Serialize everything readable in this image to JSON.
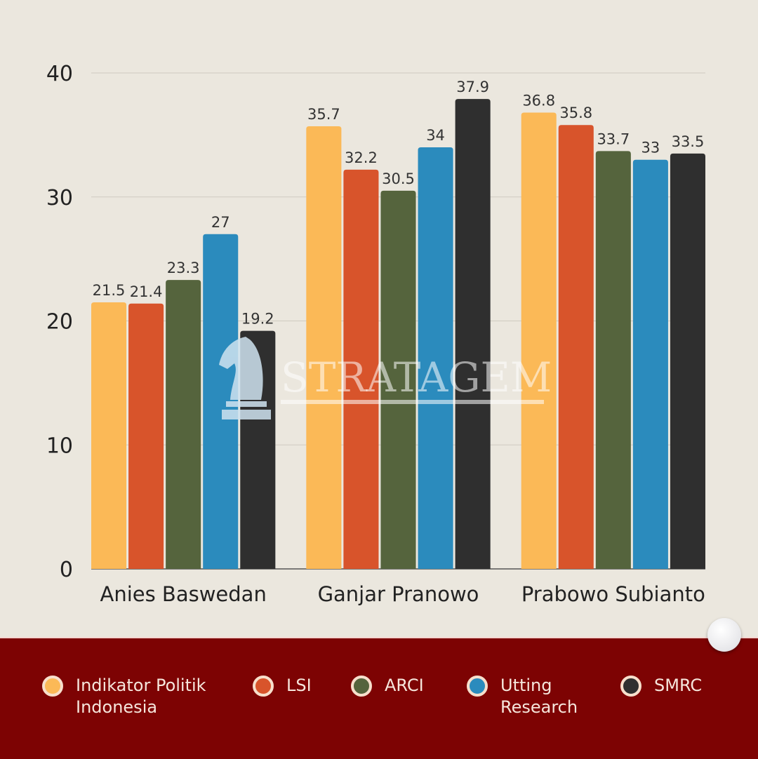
{
  "chart_data": {
    "type": "bar",
    "title": "",
    "xlabel": "",
    "ylabel": "",
    "categories": [
      "Anies Baswedan",
      "Ganjar Pranowo",
      "Prabowo Subianto"
    ],
    "ylim": [
      0,
      40
    ],
    "yticks": [
      0,
      10,
      20,
      30,
      40
    ],
    "grid": true,
    "legend_position": "bottom",
    "series": [
      {
        "name": "Indikator Politik Indonesia",
        "color": "#fbb957",
        "values": [
          21.5,
          35.7,
          36.8
        ],
        "labels": [
          "21.5",
          "35.7",
          "36.8"
        ]
      },
      {
        "name": "LSI",
        "color": "#d8542b",
        "values": [
          21.4,
          32.2,
          35.8
        ],
        "labels": [
          "21.4",
          "32.2",
          "35.8"
        ]
      },
      {
        "name": "ARCI",
        "color": "#55643d",
        "values": [
          23.3,
          30.5,
          33.7
        ],
        "labels": [
          "23.3",
          "30.5",
          "33.7"
        ]
      },
      {
        "name": "Utting Research",
        "color": "#2b8bbd",
        "values": [
          27,
          34,
          33
        ],
        "labels": [
          "27",
          "34",
          "33"
        ]
      },
      {
        "name": "SMRC",
        "color": "#2f2f2f",
        "values": [
          19.2,
          37.9,
          33.5
        ],
        "labels": [
          "19.2",
          "37.9",
          "33.5"
        ]
      }
    ]
  },
  "legend": {
    "items": [
      {
        "line1": "Indikator Politik",
        "line2": "Indonesia",
        "color": "#fbb957"
      },
      {
        "line1": "LSI",
        "line2": "",
        "color": "#d8542b"
      },
      {
        "line1": "ARCI",
        "line2": "",
        "color": "#55643d"
      },
      {
        "line1": "Utting",
        "line2": "Research",
        "color": "#2b8bbd"
      },
      {
        "line1": "SMRC",
        "line2": "",
        "color": "#2f2f2f"
      }
    ]
  },
  "watermark": {
    "text": "STRATAGEM",
    "icon": "chess-knight-icon"
  },
  "colors": {
    "background": "#ebe7de",
    "footer": "#7d0303"
  }
}
